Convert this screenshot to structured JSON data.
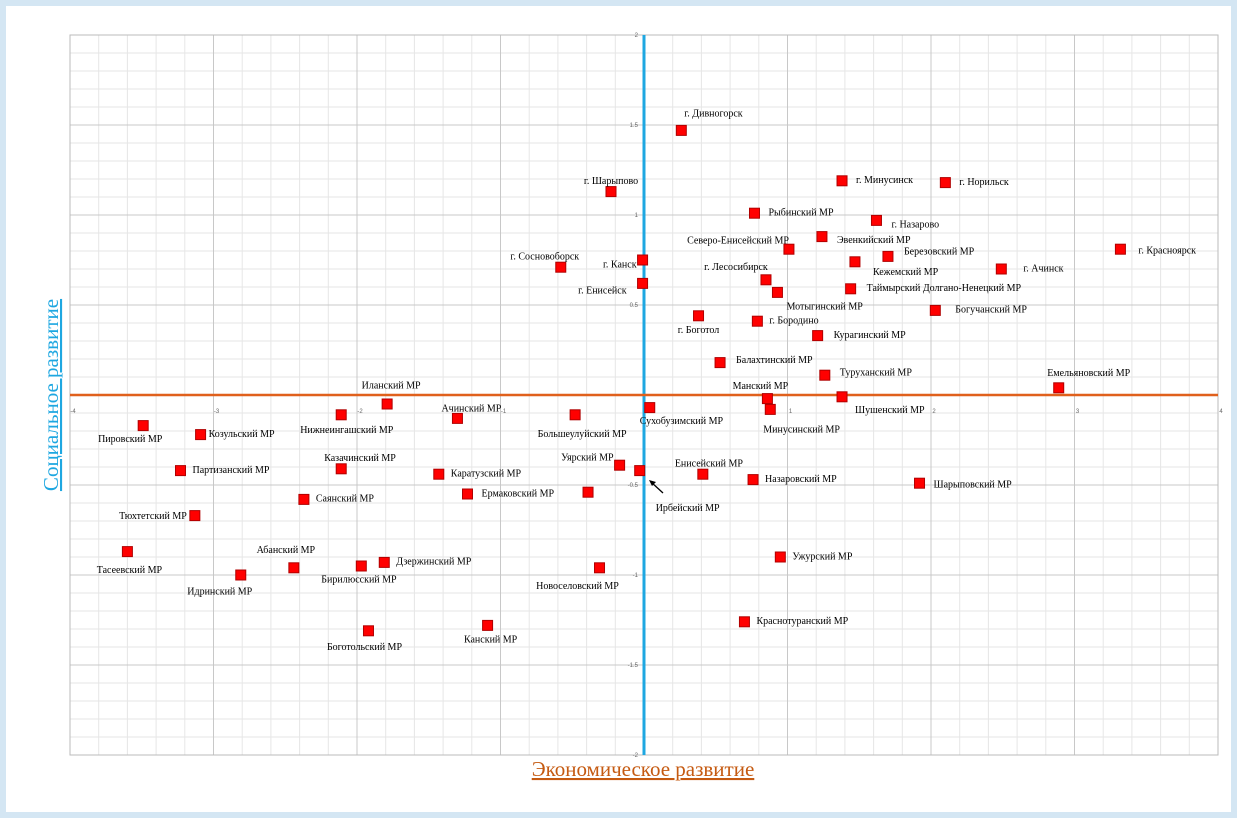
{
  "chart_data": {
    "type": "scatter",
    "x_label": "Экономическое развитие",
    "y_label": "Социальное развитие",
    "xlim": [
      -4,
      4
    ],
    "xticks": [
      -4,
      -3,
      -2,
      -1,
      1,
      2,
      3,
      4
    ],
    "ylim": [
      -2,
      2
    ],
    "yticks": [
      -2,
      -1.5,
      -1,
      -0.5,
      0.5,
      1,
      1.5,
      2
    ],
    "grid": true,
    "color": "#ff0000",
    "labels": [
      "г. Дивногорск",
      "г. Шарыпово",
      "г. Минусинск",
      "г. Норильск",
      "Рыбинский  МР",
      "г. Назарово",
      "Эвенкийский  МР",
      "Северо-Енисейский  МР",
      "Березовский  МР",
      "г. Красноярск",
      "г. Сосновоборск",
      "г. Канск",
      "г. Лесосибирск",
      "Кежемский  МР",
      "г. Ачинск",
      "г. Енисейск",
      "Мотыгинский  МР",
      "Таймырский  Долгано-Ненецкий  МР",
      "Богучанский  МР",
      "г. Боготол",
      "г. Бородино",
      "Курагинский  МР",
      "Балахтинский  МР",
      "Туруханский  МР",
      "Емельяновский  МР",
      "Манский  МР",
      "Шушенский  МР",
      "Минусинский  МР",
      "Сухобузимский  МР",
      "Иланский  МР",
      "Ачинский  МР",
      "Нижнеингашский МР",
      "Большеулуйский  МР",
      "Пировский  МР",
      "Козульский  МР",
      "Казачинский  МР",
      "Партизанский  МР",
      "Каратузский  МР",
      "Уярский  МР",
      "Ирбейский  МР",
      "Енисейский  МР",
      "Назаровский  МР",
      "Шарыповский  МР",
      "Ермаковский  МР",
      "Саянский  МР",
      null,
      "Тюхтетский  МР",
      "Тасеевский  МР",
      "Абанский  МР",
      "Идринский  МР",
      "Бирилюсский  МР",
      "Дзержинский  МР",
      "Новоселовский  МР",
      "Ужурский  МР",
      "Краснотуранский  МР",
      "Канский  МР",
      "Боготольский  МР"
    ],
    "x": [
      0.26,
      -0.23,
      1.38,
      2.1,
      0.77,
      1.62,
      1.24,
      1.01,
      1.7,
      3.32,
      -0.58,
      -0.01,
      0.85,
      1.47,
      2.49,
      -0.01,
      0.93,
      1.44,
      2.03,
      0.38,
      0.79,
      1.21,
      0.53,
      1.26,
      2.89,
      0.86,
      1.38,
      0.88,
      0.04,
      -1.79,
      -1.3,
      -2.11,
      -0.48,
      -3.49,
      -3.09,
      -2.11,
      -3.23,
      -1.43,
      -0.17,
      -0.03,
      0.41,
      0.76,
      1.92,
      -1.23,
      -2.37,
      -0.39,
      -3.13,
      -3.6,
      -2.44,
      -2.81,
      -1.97,
      -1.81,
      -0.31,
      0.95,
      0.7,
      -1.09,
      -1.92
    ],
    "values": [
      1.47,
      1.13,
      1.19,
      1.18,
      1.01,
      0.97,
      0.88,
      0.81,
      0.77,
      0.81,
      0.71,
      0.75,
      0.64,
      0.74,
      0.7,
      0.62,
      0.57,
      0.59,
      0.47,
      0.44,
      0.41,
      0.33,
      0.18,
      0.11,
      0.04,
      -0.02,
      -0.01,
      -0.08,
      -0.07,
      -0.05,
      -0.13,
      -0.11,
      -0.11,
      -0.17,
      -0.22,
      -0.41,
      -0.42,
      -0.44,
      -0.39,
      -0.42,
      -0.44,
      -0.47,
      -0.49,
      -0.55,
      -0.58,
      -0.54,
      -0.67,
      -0.87,
      -0.96,
      -1.0,
      -0.95,
      -0.93,
      -0.96,
      -0.9,
      -1.26,
      -1.28,
      -1.31
    ]
  }
}
